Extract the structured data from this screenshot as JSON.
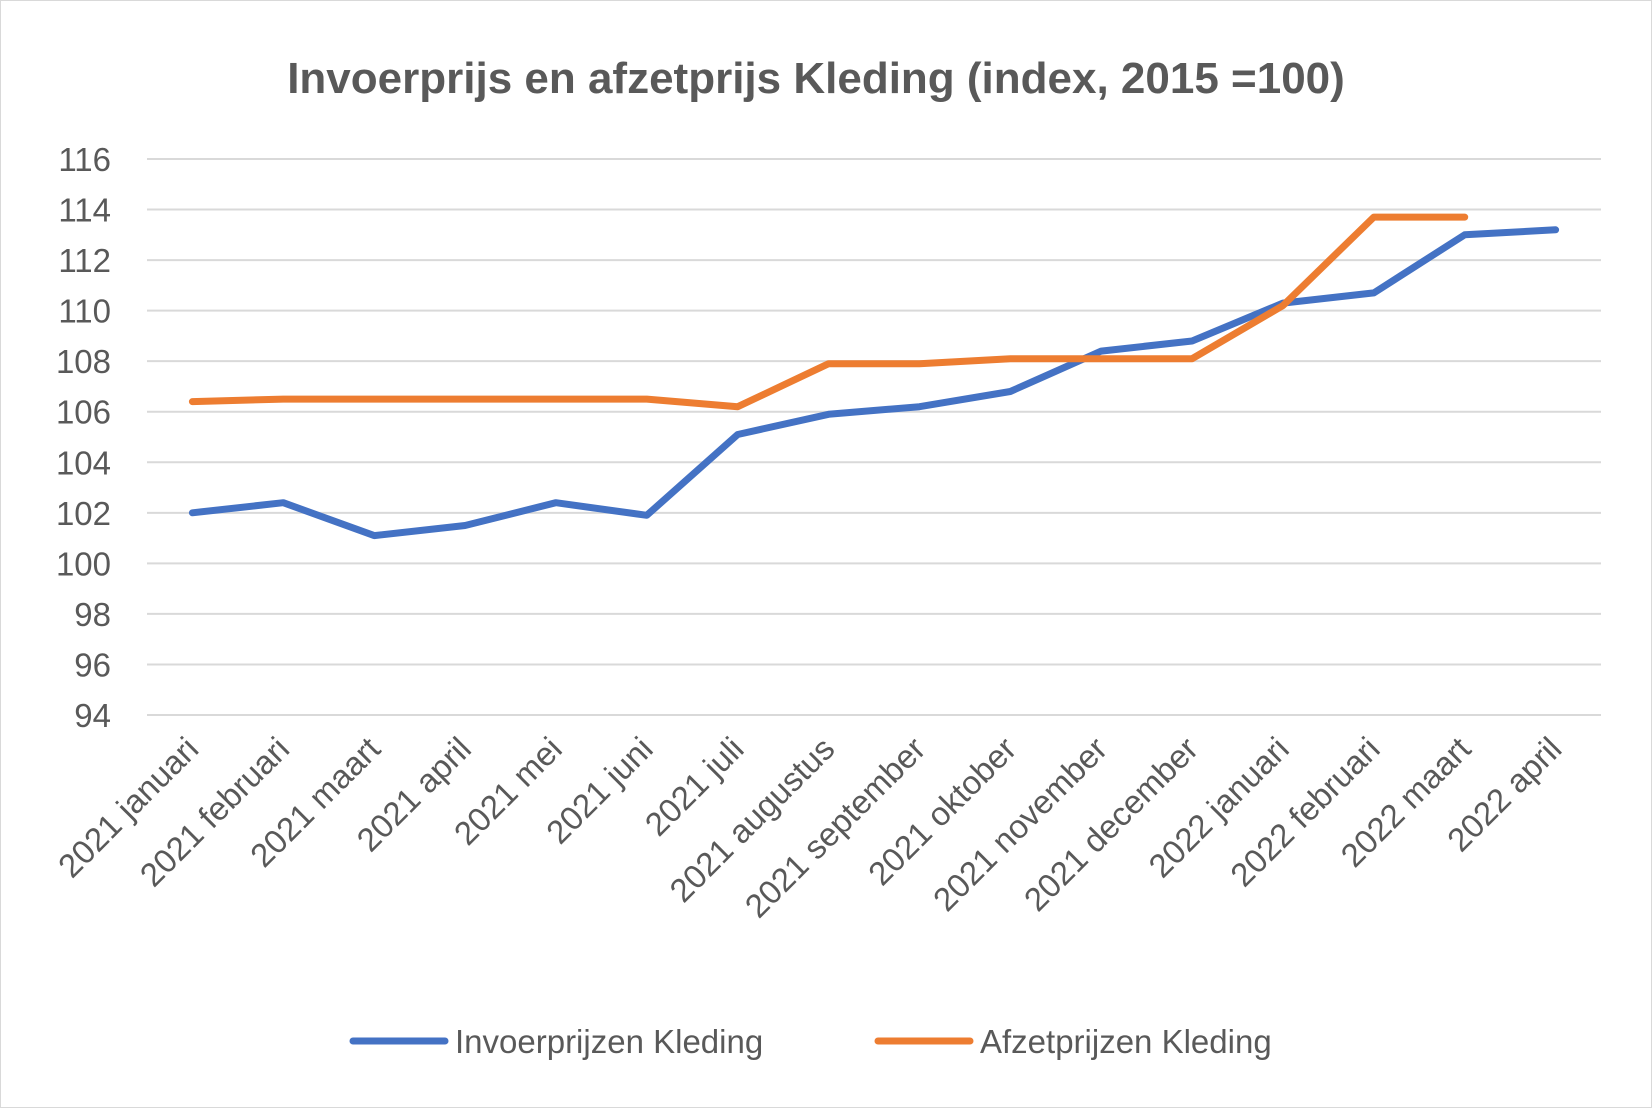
{
  "chart_data": {
    "type": "line",
    "title": "Invoerprijs en afzetprijs Kleding (index, 2015 =100)",
    "xlabel": "",
    "ylabel": "",
    "ylim": [
      94,
      116
    ],
    "yticks": [
      94,
      96,
      98,
      100,
      102,
      104,
      106,
      108,
      110,
      112,
      114,
      116
    ],
    "grid": true,
    "legend_position": "bottom",
    "categories": [
      "2021 januari",
      "2021 februari",
      "2021 maart",
      "2021 april",
      "2021 mei",
      "2021 juni",
      "2021 juli",
      "2021 augustus",
      "2021 september",
      "2021 oktober",
      "2021 november",
      "2021 december",
      "2022 januari",
      "2022 februari",
      "2022 maart",
      "2022 april"
    ],
    "series": [
      {
        "name": "Invoerprijzen Kleding",
        "color": "#4472c4",
        "values": [
          102.0,
          102.4,
          101.1,
          101.5,
          102.4,
          101.9,
          105.1,
          105.9,
          106.2,
          106.8,
          108.4,
          108.8,
          110.3,
          110.7,
          113.0,
          113.2
        ]
      },
      {
        "name": "Afzetprijzen Kleding",
        "color": "#ed7d31",
        "values": [
          106.4,
          106.5,
          106.5,
          106.5,
          106.5,
          106.5,
          106.2,
          107.9,
          107.9,
          108.1,
          108.1,
          108.1,
          110.2,
          113.7,
          113.7,
          null
        ]
      }
    ]
  }
}
